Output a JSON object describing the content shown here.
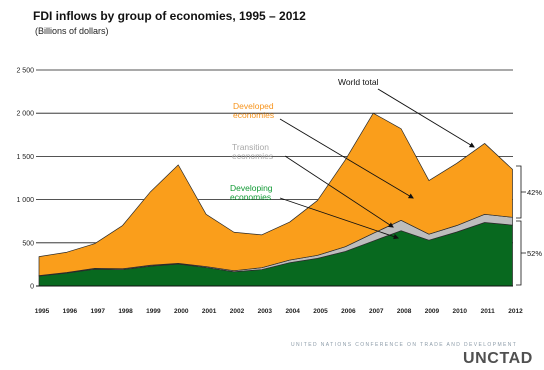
{
  "chart_data": {
    "type": "area",
    "stacked": true,
    "title": "FDI inflows by group of economies, 1995 – 2012",
    "subtitle": "(Billions of dollars)",
    "xlabel": "",
    "ylabel": "",
    "x": [
      1995,
      1996,
      1997,
      1998,
      1999,
      2000,
      2001,
      2002,
      2003,
      2004,
      2005,
      2006,
      2007,
      2008,
      2009,
      2010,
      2011,
      2012
    ],
    "y_ticks": [
      0,
      500,
      1000,
      1500,
      2000,
      2500
    ],
    "y_tick_labels": [
      "0",
      "500",
      "1 000",
      "1 500",
      "2 000",
      "2 500"
    ],
    "ylim": [
      0,
      2500
    ],
    "grid": true,
    "series": [
      {
        "name": "Developing economies",
        "color": "#08691F",
        "values": [
          115,
          150,
          195,
          190,
          230,
          255,
          215,
          165,
          190,
          270,
          320,
          400,
          520,
          640,
          530,
          625,
          735,
          705
        ]
      },
      {
        "name": "Transition economies",
        "color": "#BDBDBD",
        "values": [
          5,
          6,
          10,
          10,
          10,
          7,
          10,
          12,
          22,
          30,
          35,
          55,
          90,
          120,
          70,
          75,
          95,
          90
        ]
      },
      {
        "name": "Developed economies",
        "color": "#FA9E1B",
        "values": [
          220,
          235,
          285,
          500,
          850,
          1140,
          605,
          445,
          380,
          440,
          635,
          1005,
          1390,
          1060,
          620,
          720,
          820,
          555
        ]
      }
    ],
    "annotations": {
      "world_total": "World total",
      "share_top": "42%",
      "share_bottom": "52%"
    }
  },
  "footer": {
    "organization": "UNITED NATIONS CONFERENCE ON TRADE AND DEVELOPMENT",
    "logo": "UNCTAD"
  }
}
